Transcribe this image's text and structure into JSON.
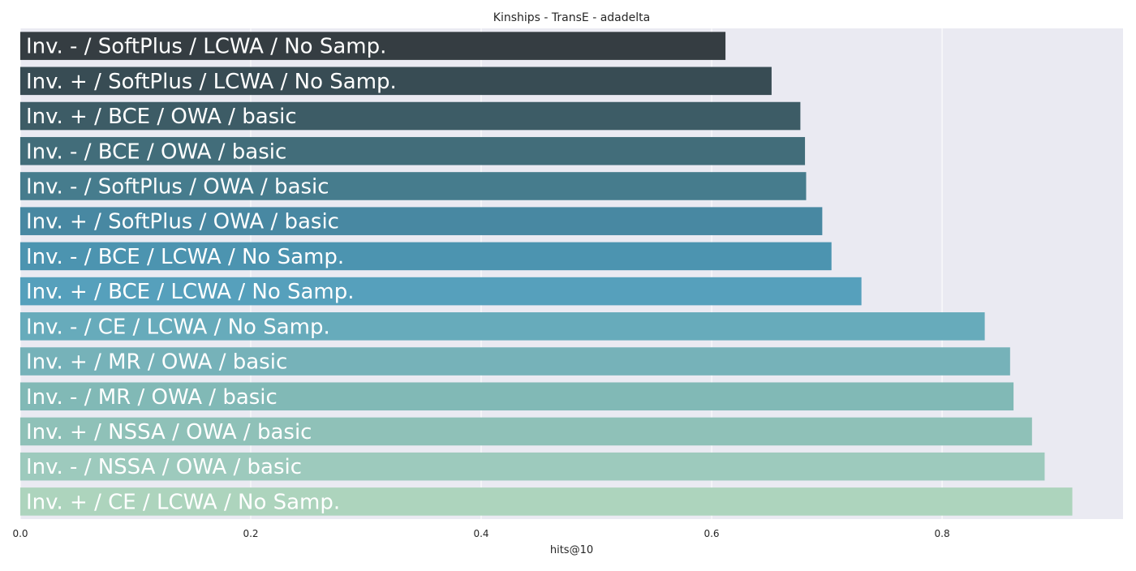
{
  "chart_data": {
    "type": "bar",
    "orientation": "horizontal",
    "title": "Kinships - TransE - adadelta",
    "xlabel": "hits@10",
    "ylabel": "",
    "xlim": [
      0,
      0.957
    ],
    "xticks": [
      0.0,
      0.2,
      0.4,
      0.6,
      0.8
    ],
    "xtick_labels": [
      "0.0",
      "0.2",
      "0.4",
      "0.6",
      "0.8"
    ],
    "grid": true,
    "bar_labels_inside": true,
    "categories": [
      "Inv. - / SoftPlus / LCWA / No Samp.",
      "Inv. + / SoftPlus / LCWA / No Samp.",
      "Inv. + / BCE / OWA / basic",
      "Inv. - / BCE / OWA / basic",
      "Inv. - / SoftPlus / OWA / basic",
      "Inv. + / SoftPlus / OWA / basic",
      "Inv. - / BCE / LCWA / No Samp.",
      "Inv. + / BCE / LCWA / No Samp.",
      "Inv. - / CE / LCWA / No Samp.",
      "Inv. + / MR / OWA / basic",
      "Inv. - / MR / OWA / basic",
      "Inv. + / NSSA / OWA / basic",
      "Inv. - / NSSA / OWA / basic",
      "Inv. + / CE / LCWA / No Samp."
    ],
    "values": [
      0.612,
      0.652,
      0.677,
      0.681,
      0.682,
      0.696,
      0.704,
      0.73,
      0.837,
      0.859,
      0.862,
      0.878,
      0.889,
      0.913
    ],
    "colors": [
      "#353d42",
      "#384c54",
      "#3d5c66",
      "#426d7a",
      "#467c8d",
      "#4888a2",
      "#4c94b0",
      "#56a0bc",
      "#67abbb",
      "#76b2b9",
      "#81b9b6",
      "#8fc1b8",
      "#9dcabd",
      "#add4bd"
    ],
    "background": "#eaeaf2",
    "grid_color": "#ffffff"
  }
}
